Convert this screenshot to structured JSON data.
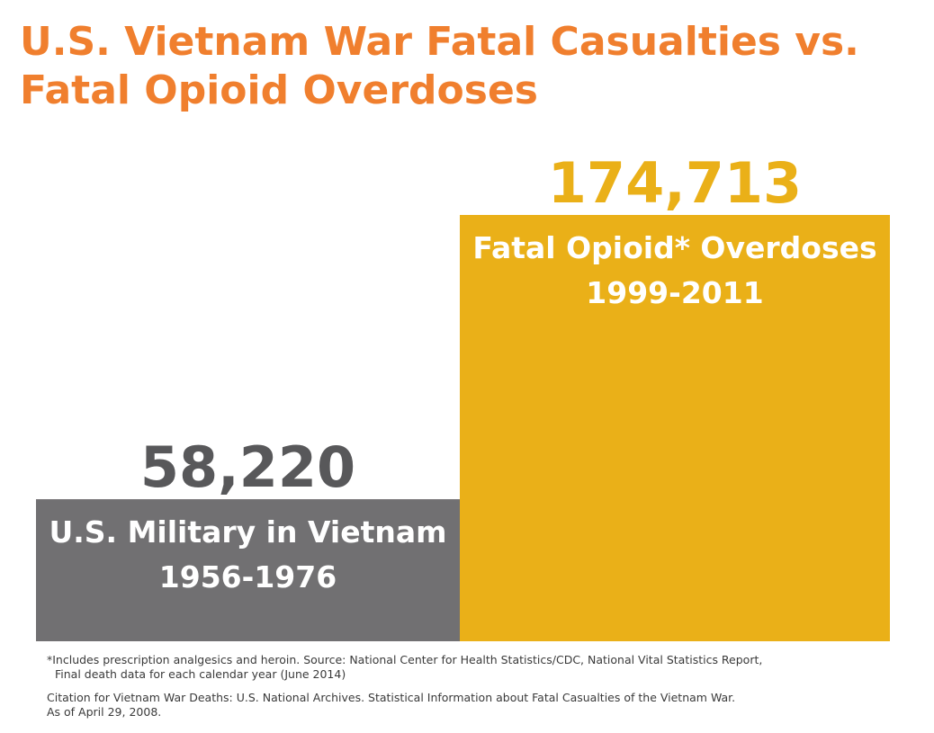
{
  "title": "U.S. Vietnam War Fatal Casualties vs. Fatal Opioid Overdoses",
  "chart_data": {
    "type": "bar",
    "title": "U.S. Vietnam War Fatal Casualties vs. Fatal Opioid Overdoses",
    "categories": [
      {
        "name": "U.S. Military in Vietnam",
        "period": "1956-1976"
      },
      {
        "name": "Fatal Opioid* Overdoses",
        "period": "1999-2011"
      }
    ],
    "values": [
      58220,
      174713
    ],
    "value_labels": [
      "58,220",
      "174,713"
    ],
    "colors": {
      "bar_vietnam": "#717072",
      "bar_opioid": "#eab018",
      "value_vietnam": "#58585a",
      "value_opioid": "#eab018",
      "title": "#f07f2e"
    },
    "grid": false,
    "legend": "none"
  },
  "footnotes": {
    "opioid_line1": "*Includes prescription analgesics and heroin. Source: National Center for Health Statistics/CDC, National Vital Statistics Report,",
    "opioid_line2": "Final death data for each calendar year (June 2014)",
    "citation_line1": "Citation for Vietnam War Deaths: U.S. National Archives. Statistical Information about Fatal Casualties of the Vietnam War.",
    "citation_line2": "As of April 29, 2008."
  }
}
